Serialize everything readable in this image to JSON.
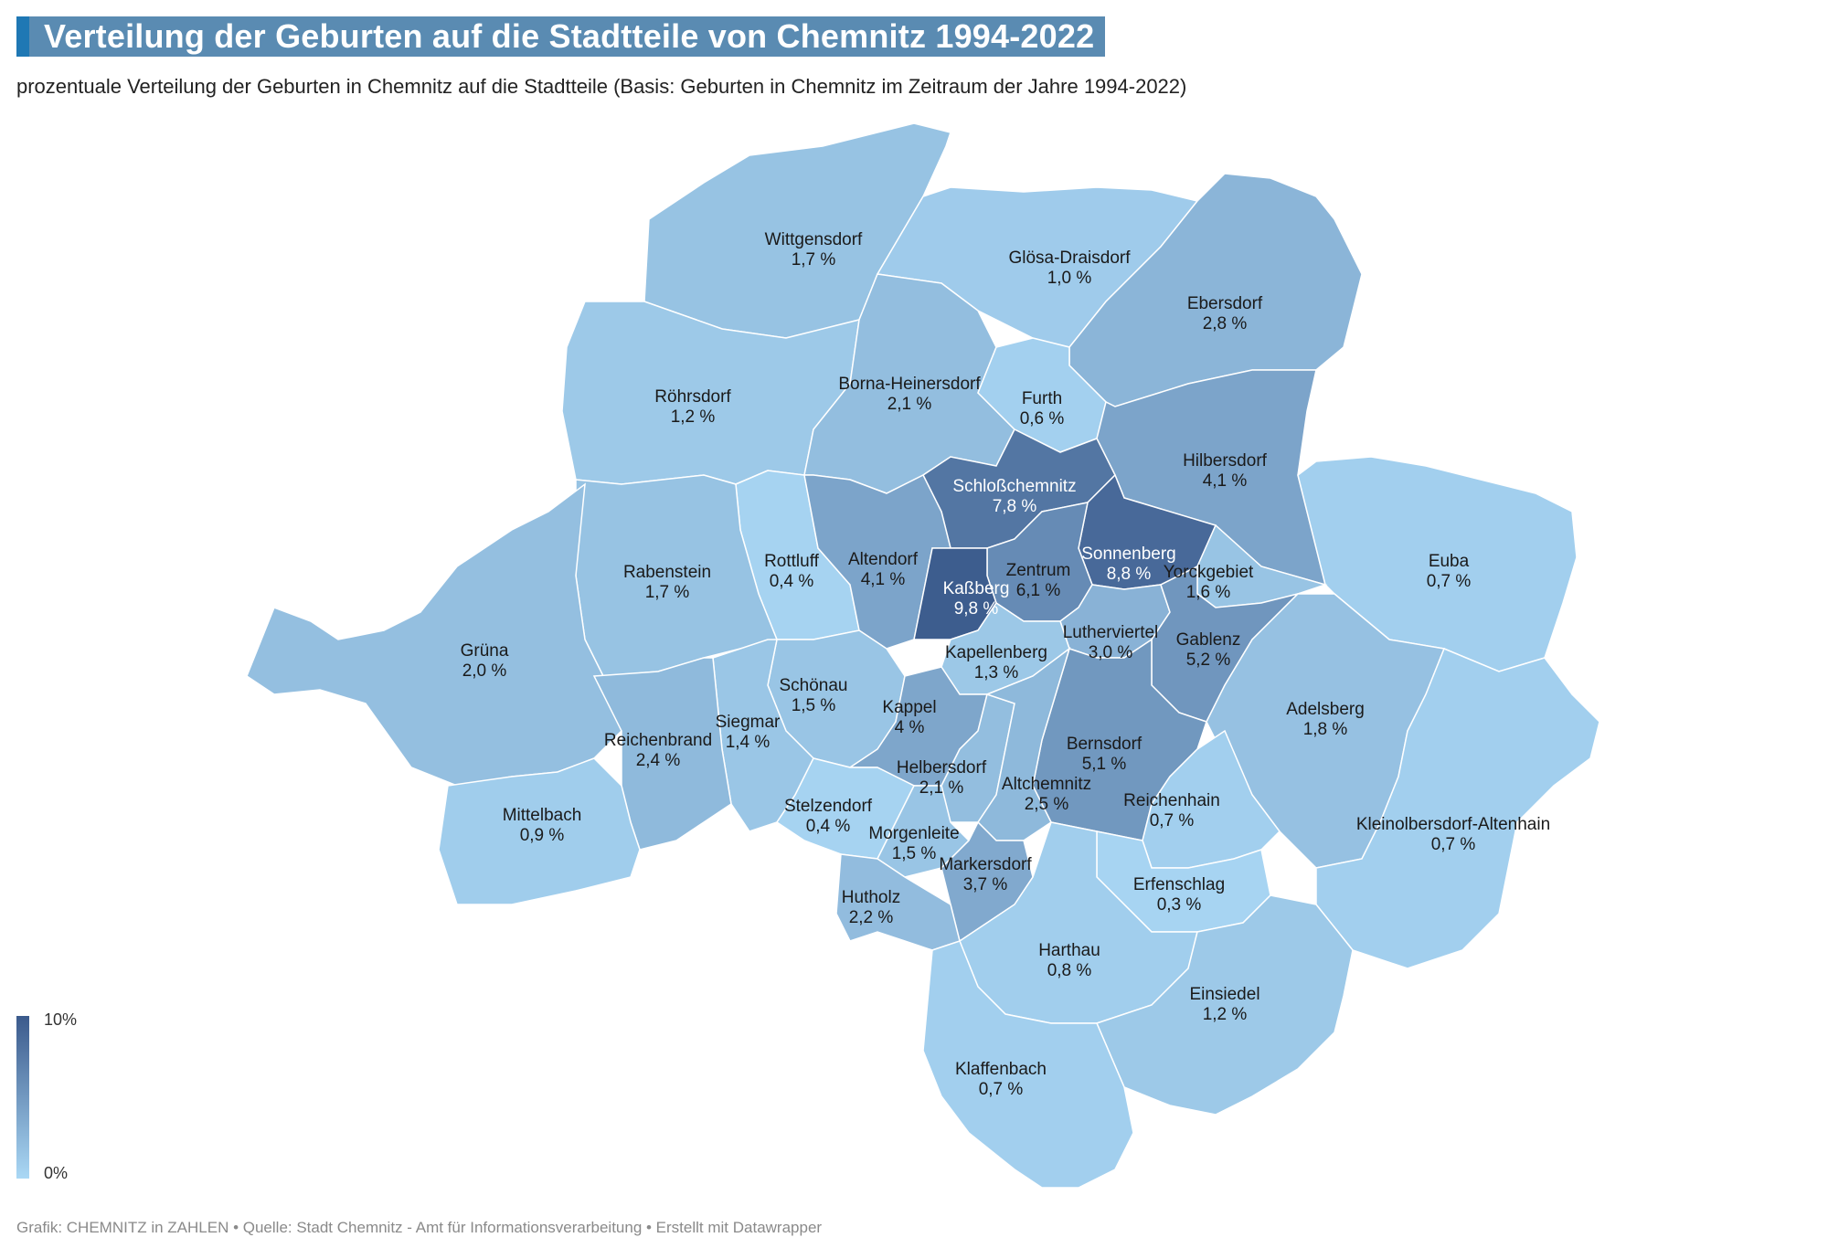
{
  "header": {
    "title": "Verteilung der Geburten auf die Stadtteile von Chemnitz 1994-2022",
    "subtitle": "prozentuale Verteilung der Geburten in Chemnitz auf die Stadtteile (Basis: Geburten in Chemnitz im Zeitraum der Jahre 1994-2022)"
  },
  "legend": {
    "max_label": "10%",
    "min_label": "0%",
    "color_max": "#3b5a8c",
    "color_min": "#aad8f5"
  },
  "colors": {
    "border": "#ffffff",
    "background": "#ffffff",
    "title_box": "#5a8bb2",
    "title_accent": "#1f78b4"
  },
  "districts": [
    {
      "name": "Wittgensdorf",
      "value": "1,7 %",
      "pct": 1.7
    },
    {
      "name": "Glösa-Draisdorf",
      "value": "1,0 %",
      "pct": 1.0
    },
    {
      "name": "Ebersdorf",
      "value": "2,8 %",
      "pct": 2.8
    },
    {
      "name": "Röhrsdorf",
      "value": "1,2 %",
      "pct": 1.2
    },
    {
      "name": "Borna-Heinersdorf",
      "value": "2,1 %",
      "pct": 2.1
    },
    {
      "name": "Furth",
      "value": "0,6 %",
      "pct": 0.6
    },
    {
      "name": "Hilbersdorf",
      "value": "4,1 %",
      "pct": 4.1
    },
    {
      "name": "Schloßchemnitz",
      "value": "7,8 %",
      "pct": 7.8
    },
    {
      "name": "Euba",
      "value": "0,7 %",
      "pct": 0.7
    },
    {
      "name": "Rottluff",
      "value": "0,4 %",
      "pct": 0.4
    },
    {
      "name": "Altendorf",
      "value": "4,1 %",
      "pct": 4.1
    },
    {
      "name": "Sonnenberg",
      "value": "8,8 %",
      "pct": 8.8
    },
    {
      "name": "Rabenstein",
      "value": "1,7 %",
      "pct": 1.7
    },
    {
      "name": "Zentrum",
      "value": "6,1 %",
      "pct": 6.1
    },
    {
      "name": "Yorckgebiet",
      "value": "1,6 %",
      "pct": 1.6
    },
    {
      "name": "Kaßberg",
      "value": "9,8 %",
      "pct": 9.8
    },
    {
      "name": "Lutherviertel",
      "value": "3,0 %",
      "pct": 3.0
    },
    {
      "name": "Gablenz",
      "value": "5,2 %",
      "pct": 5.2
    },
    {
      "name": "Grüna",
      "value": "2,0 %",
      "pct": 2.0
    },
    {
      "name": "Kapellenberg",
      "value": "1,3 %",
      "pct": 1.3
    },
    {
      "name": "Schönau",
      "value": "1,5 %",
      "pct": 1.5
    },
    {
      "name": "Adelsberg",
      "value": "1,8 %",
      "pct": 1.8
    },
    {
      "name": "Kappel",
      "value": "4 %",
      "pct": 4.0
    },
    {
      "name": "Siegmar",
      "value": "1,4 %",
      "pct": 1.4
    },
    {
      "name": "Reichenbrand",
      "value": "2,4 %",
      "pct": 2.4
    },
    {
      "name": "Bernsdorf",
      "value": "5,1 %",
      "pct": 5.1
    },
    {
      "name": "Helbersdorf",
      "value": "2,1 %",
      "pct": 2.1
    },
    {
      "name": "Altchemnitz",
      "value": "2,5 %",
      "pct": 2.5
    },
    {
      "name": "Reichenhain",
      "value": "0,7 %",
      "pct": 0.7
    },
    {
      "name": "Kleinolbersdorf-Altenhain",
      "value": "0,7 %",
      "pct": 0.7
    },
    {
      "name": "Mittelbach",
      "value": "0,9 %",
      "pct": 0.9
    },
    {
      "name": "Stelzendorf",
      "value": "0,4 %",
      "pct": 0.4
    },
    {
      "name": "Morgenleite",
      "value": "1,5 %",
      "pct": 1.5
    },
    {
      "name": "Markersdorf",
      "value": "3,7 %",
      "pct": 3.7
    },
    {
      "name": "Erfenschlag",
      "value": "0,3 %",
      "pct": 0.3
    },
    {
      "name": "Hutholz",
      "value": "2,2 %",
      "pct": 2.2
    },
    {
      "name": "Harthau",
      "value": "0,8 %",
      "pct": 0.8
    },
    {
      "name": "Einsiedel",
      "value": "1,2 %",
      "pct": 1.2
    },
    {
      "name": "Klaffenbach",
      "value": "0,7 %",
      "pct": 0.7
    }
  ],
  "footer": {
    "credit": "Grafik: CHEMNITZ in ZAHLEN • Quelle: Stadt Chemnitz - Amt für Informationsverarbeitung • Erstellt mit Datawrapper"
  }
}
